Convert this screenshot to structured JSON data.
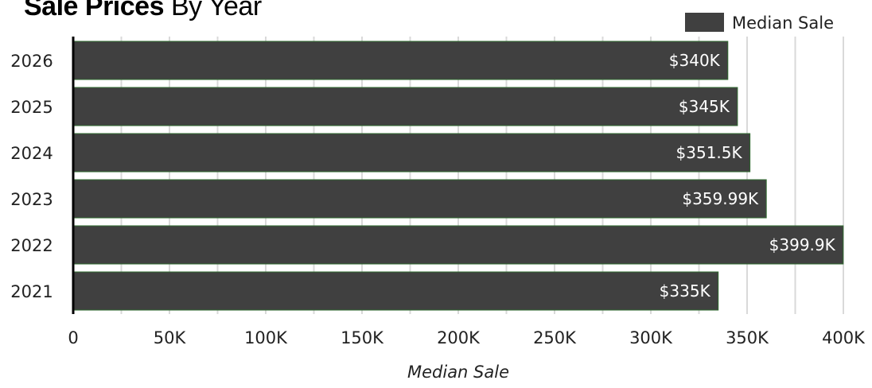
{
  "chart_data": {
    "type": "bar",
    "orientation": "horizontal",
    "title": "Sale Prices",
    "subtitle": "By Year",
    "categories": [
      "2026",
      "2025",
      "2024",
      "2023",
      "2022",
      "2021"
    ],
    "series": [
      {
        "name": "Median Sale",
        "values": [
          340000,
          345000,
          351500,
          359990,
          399900,
          335000
        ],
        "labels": [
          "$340K",
          "$345K",
          "$351.5K",
          "$359.99K",
          "$399.9K",
          "$335K"
        ]
      }
    ],
    "xlabel": "Median Sale",
    "ylabel": "",
    "xlim": [
      0,
      400000
    ],
    "xticks": [
      0,
      50000,
      100000,
      150000,
      200000,
      250000,
      300000,
      350000,
      400000
    ],
    "xtick_labels": [
      "0",
      "50K",
      "100K",
      "150K",
      "200K",
      "250K",
      "300K",
      "350K",
      "400K"
    ],
    "grid": true,
    "legend_position": "top-right",
    "colors": {
      "bar": "#404040",
      "bar_edge": "#2f6b2f",
      "grid": "#d9d9d9",
      "axis": "#000000",
      "label": "#ffffff"
    }
  }
}
